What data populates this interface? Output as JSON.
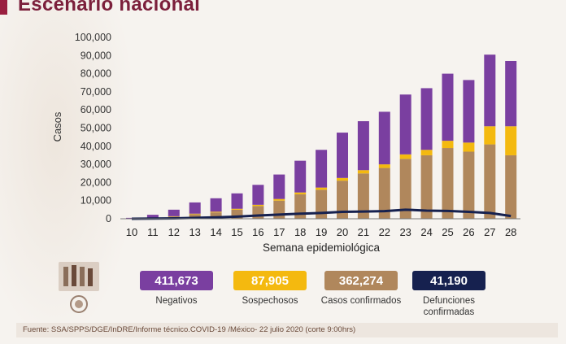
{
  "header": {
    "title": "Escenario nacional"
  },
  "colors": {
    "negativos": "#7a3fa0",
    "sospechosos": "#f4b90f",
    "confirmados": "#b0875c",
    "defunciones": "#16214f",
    "title": "#7b1f3b"
  },
  "chart_data": {
    "type": "bar",
    "stacked": true,
    "categories": [
      "10",
      "11",
      "12",
      "13",
      "14",
      "15",
      "16",
      "17",
      "18",
      "19",
      "20",
      "21",
      "22",
      "23",
      "24",
      "25",
      "26",
      "27",
      "28"
    ],
    "xlabel": "Semana epidemiológica",
    "ylabel": "Casos",
    "ylim": [
      0,
      100000
    ],
    "yticks": [
      "0",
      "10,000",
      "20,000",
      "30,000",
      "40,000",
      "50,000",
      "60,000",
      "70,000",
      "80,000",
      "90,000",
      "100,000"
    ],
    "grid": false,
    "series": [
      {
        "name": "Casos confirmados",
        "values": [
          100,
          500,
          1200,
          2500,
          3500,
          5000,
          7000,
          10000,
          13500,
          16000,
          21000,
          25000,
          28000,
          33000,
          35000,
          39000,
          37000,
          41000,
          35000
        ]
      },
      {
        "name": "Sospechosos",
        "values": [
          0,
          100,
          200,
          300,
          400,
          500,
          700,
          900,
          1000,
          1200,
          1500,
          1800,
          2000,
          2500,
          3000,
          4000,
          5000,
          10000,
          16000
        ]
      },
      {
        "name": "Negativos",
        "values": [
          400,
          1600,
          3600,
          6200,
          7400,
          8500,
          11000,
          13500,
          17500,
          20800,
          25000,
          27000,
          29000,
          33000,
          34000,
          37000,
          34500,
          39500,
          36000
        ]
      }
    ],
    "line": {
      "name": "Defunciones confirmadas",
      "values": [
        0,
        100,
        200,
        500,
        800,
        1200,
        1800,
        2300,
        2800,
        3200,
        3800,
        4000,
        4200,
        5000,
        4500,
        4300,
        3800,
        3200,
        1500
      ]
    }
  },
  "legend": [
    {
      "value": "411,673",
      "label": "Negativos",
      "color": "#7a3fa0",
      "text_color": "#ffffff"
    },
    {
      "value": "87,905",
      "label": "Sospechosos",
      "color": "#f4b90f",
      "text_color": "#ffffff"
    },
    {
      "value": "362,274",
      "label": "Casos confirmados",
      "color": "#b0875c",
      "text_color": "#ffffff"
    },
    {
      "value": "41,190",
      "label": "Defunciones confirmadas",
      "color": "#16214f",
      "text_color": "#ffffff"
    }
  ],
  "footer": {
    "source": "Fuente: SSA/SPPS/DGE/InDRE/Informe técnico.COVID-19 /México- 22 julio 2020 (corte 9:00hrs)"
  }
}
